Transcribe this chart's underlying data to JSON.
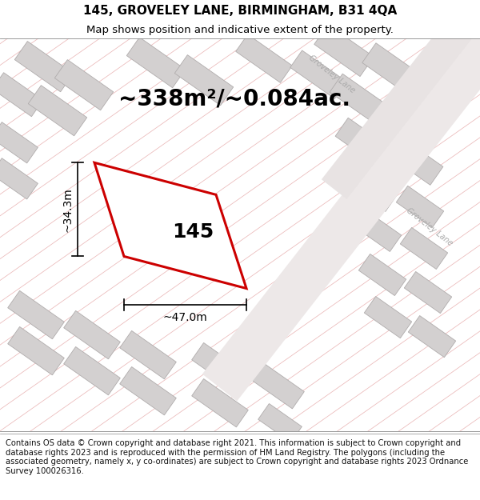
{
  "title_line1": "145, GROVELEY LANE, BIRMINGHAM, B31 4QA",
  "title_line2": "Map shows position and indicative extent of the property.",
  "area_text": "~338m²/~0.084ac.",
  "label_145": "145",
  "dim_width": "~47.0m",
  "dim_height": "~34.3m",
  "footer_text": "Contains OS data © Crown copyright and database right 2021. This information is subject to Crown copyright and database rights 2023 and is reproduced with the permission of HM Land Registry. The polygons (including the associated geometry, namely x, y co-ordinates) are subject to Crown copyright and database rights 2023 Ordnance Survey 100026316.",
  "map_bg": "#f5efef",
  "building_color": "#d3d0d0",
  "building_edge_color": "#b0acac",
  "hatch_color": "#e8b0b0",
  "red_outline_color": "#cc0000",
  "title_fontsize": 11,
  "subtitle_fontsize": 9.5,
  "area_fontsize": 20,
  "label_fontsize": 18,
  "dim_fontsize": 10,
  "footer_fontsize": 7.2,
  "road_label_color": "#aaaaaa",
  "road_label_fontsize": 7
}
